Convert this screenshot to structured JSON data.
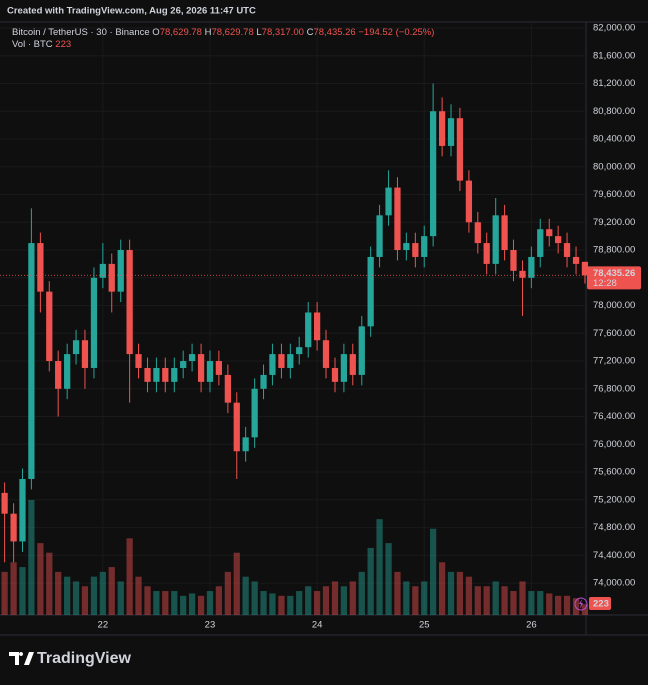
{
  "created": "Created with TradingView.com, Aug 26, 2026 11:47 UTC",
  "legend": {
    "symbol": "Bitcoin / TetherUS · 30 · Binance",
    "o_label": "O",
    "o": "78,629.78",
    "h_label": "H",
    "h": "78,629.78",
    "l_label": "L",
    "l": "78,317.00",
    "c_label": "C",
    "c": "78,435.26",
    "change": "−194.52 (−0.25%)",
    "vol_label": "Vol · BTC",
    "vol": "223"
  },
  "brand": "TradingView",
  "chart_data": {
    "type": "candlestick",
    "up_color": "#26a69a",
    "down_color": "#ef5350",
    "x": [
      21.083,
      21.167,
      21.25,
      21.333,
      21.417,
      21.5,
      21.583,
      21.667,
      21.75,
      21.833,
      21.917,
      22,
      22.083,
      22.167,
      22.25,
      22.333,
      22.417,
      22.5,
      22.583,
      22.667,
      22.75,
      22.833,
      22.917,
      23,
      23.083,
      23.167,
      23.25,
      23.333,
      23.417,
      23.5,
      23.583,
      23.667,
      23.75,
      23.833,
      23.917,
      24,
      24.083,
      24.167,
      24.25,
      24.333,
      24.417,
      24.5,
      24.583,
      24.667,
      24.75,
      24.833,
      24.917,
      25,
      25.083,
      25.167,
      25.25,
      25.333,
      25.417,
      25.5,
      25.583,
      25.667,
      25.75,
      25.833,
      25.917,
      26,
      26.083,
      26.167,
      26.25,
      26.333,
      26.417,
      26.5
    ],
    "open": [
      75300,
      75000,
      74600,
      75500,
      78900,
      78200,
      77200,
      76800,
      77300,
      77500,
      77100,
      78400,
      78600,
      78200,
      78800,
      77300,
      77100,
      76900,
      77100,
      76900,
      77100,
      77200,
      77300,
      76900,
      77200,
      77000,
      76600,
      75900,
      76100,
      76800,
      77000,
      77300,
      77100,
      77300,
      77400,
      77900,
      77500,
      77100,
      76900,
      77300,
      77000,
      77700,
      78700,
      79300,
      79700,
      78800,
      78900,
      78700,
      79000,
      80800,
      80300,
      80700,
      79800,
      79200,
      78900,
      78600,
      79300,
      78800,
      78500,
      78400,
      78700,
      79100,
      79000,
      78900,
      78700,
      78629.78
    ],
    "high": [
      75450,
      75150,
      75650,
      79400,
      79050,
      78350,
      77350,
      77450,
      77650,
      77650,
      78550,
      78900,
      78750,
      78950,
      78950,
      77450,
      77250,
      77250,
      77250,
      77250,
      77350,
      77450,
      77450,
      77350,
      77350,
      77150,
      76750,
      76250,
      76950,
      77150,
      77450,
      77450,
      77450,
      77550,
      78050,
      78050,
      77650,
      77250,
      77450,
      77450,
      77850,
      78850,
      79450,
      79950,
      79850,
      79050,
      79050,
      79150,
      81200,
      81000,
      80900,
      80850,
      79950,
      79350,
      79050,
      79550,
      79450,
      78950,
      78650,
      78850,
      79250,
      79250,
      79150,
      79050,
      78850,
      78629.78
    ],
    "low": [
      74300,
      74300,
      74450,
      75350,
      77900,
      77050,
      76400,
      76650,
      77150,
      76800,
      76950,
      78250,
      77900,
      78050,
      76600,
      76950,
      76750,
      76750,
      76750,
      76750,
      76950,
      77050,
      76750,
      76750,
      76850,
      76450,
      75500,
      75750,
      75950,
      76650,
      76850,
      76950,
      76950,
      77150,
      77250,
      77350,
      76950,
      76750,
      76750,
      76850,
      76850,
      77550,
      78550,
      79150,
      78650,
      78650,
      78550,
      78550,
      78850,
      80150,
      80150,
      79650,
      79050,
      78750,
      78450,
      78450,
      78650,
      78350,
      77850,
      78250,
      78550,
      78850,
      78750,
      78550,
      78450,
      78317.0
    ],
    "close": [
      75000,
      74600,
      75500,
      78900,
      78200,
      77200,
      76800,
      77300,
      77500,
      77100,
      78400,
      78600,
      78200,
      78800,
      77300,
      77100,
      76900,
      77100,
      76900,
      77100,
      77200,
      77300,
      76900,
      77200,
      77000,
      76600,
      75900,
      76100,
      76800,
      77000,
      77300,
      77100,
      77300,
      77400,
      77900,
      77500,
      77100,
      76900,
      77300,
      77000,
      77700,
      78700,
      79300,
      79700,
      78800,
      78900,
      78700,
      79000,
      80800,
      80300,
      80700,
      79800,
      79200,
      78900,
      78600,
      79300,
      78800,
      78500,
      78400,
      78700,
      79100,
      79000,
      78900,
      78700,
      78600,
      78435.26
    ],
    "volume": [
      900,
      1100,
      1000,
      2400,
      1500,
      1300,
      900,
      800,
      700,
      600,
      800,
      900,
      1000,
      700,
      1600,
      800,
      600,
      500,
      500,
      500,
      400,
      450,
      400,
      500,
      600,
      900,
      1300,
      800,
      700,
      500,
      450,
      400,
      400,
      500,
      600,
      500,
      600,
      700,
      600,
      700,
      900,
      1400,
      2000,
      1500,
      900,
      700,
      600,
      700,
      1800,
      1100,
      900,
      900,
      800,
      600,
      600,
      700,
      600,
      500,
      700,
      500,
      500,
      450,
      400,
      400,
      350,
      223
    ],
    "last_price_label": "78,435.26",
    "countdown": "12:28",
    "last_volume_label": "223",
    "xlim": [
      21.04,
      26.51
    ],
    "xticks": [
      22,
      23,
      24,
      25,
      26
    ],
    "ylim": [
      73540,
      82115
    ],
    "yticks": [
      {
        "value": 74000,
        "label": "74,000.00"
      },
      {
        "value": 74400,
        "label": "74,400.00"
      },
      {
        "value": 74800,
        "label": "74,800.00"
      },
      {
        "value": 75200,
        "label": "75,200.00"
      },
      {
        "value": 75600,
        "label": "75,600.00"
      },
      {
        "value": 76000,
        "label": "76,000.00"
      },
      {
        "value": 76400,
        "label": "76,400.00"
      },
      {
        "value": 76800,
        "label": "76,800.00"
      },
      {
        "value": 77200,
        "label": "77,200.00"
      },
      {
        "value": 77600,
        "label": "77,600.00"
      },
      {
        "value": 78000,
        "label": "78,000.00"
      },
      {
        "value": 78400,
        "label": "78,400.00"
      },
      {
        "value": 78800,
        "label": "78,800.00"
      },
      {
        "value": 79200,
        "label": "79,200.00"
      },
      {
        "value": 79600,
        "label": "79,600.00"
      },
      {
        "value": 80000,
        "label": "80,000.00"
      },
      {
        "value": 80400,
        "label": "80,400.00"
      },
      {
        "value": 80800,
        "label": "80,800.00"
      },
      {
        "value": 81200,
        "label": "81,200.00"
      },
      {
        "value": 81600,
        "label": "81,600.00"
      },
      {
        "value": 82000,
        "label": "82,000.00"
      }
    ]
  }
}
